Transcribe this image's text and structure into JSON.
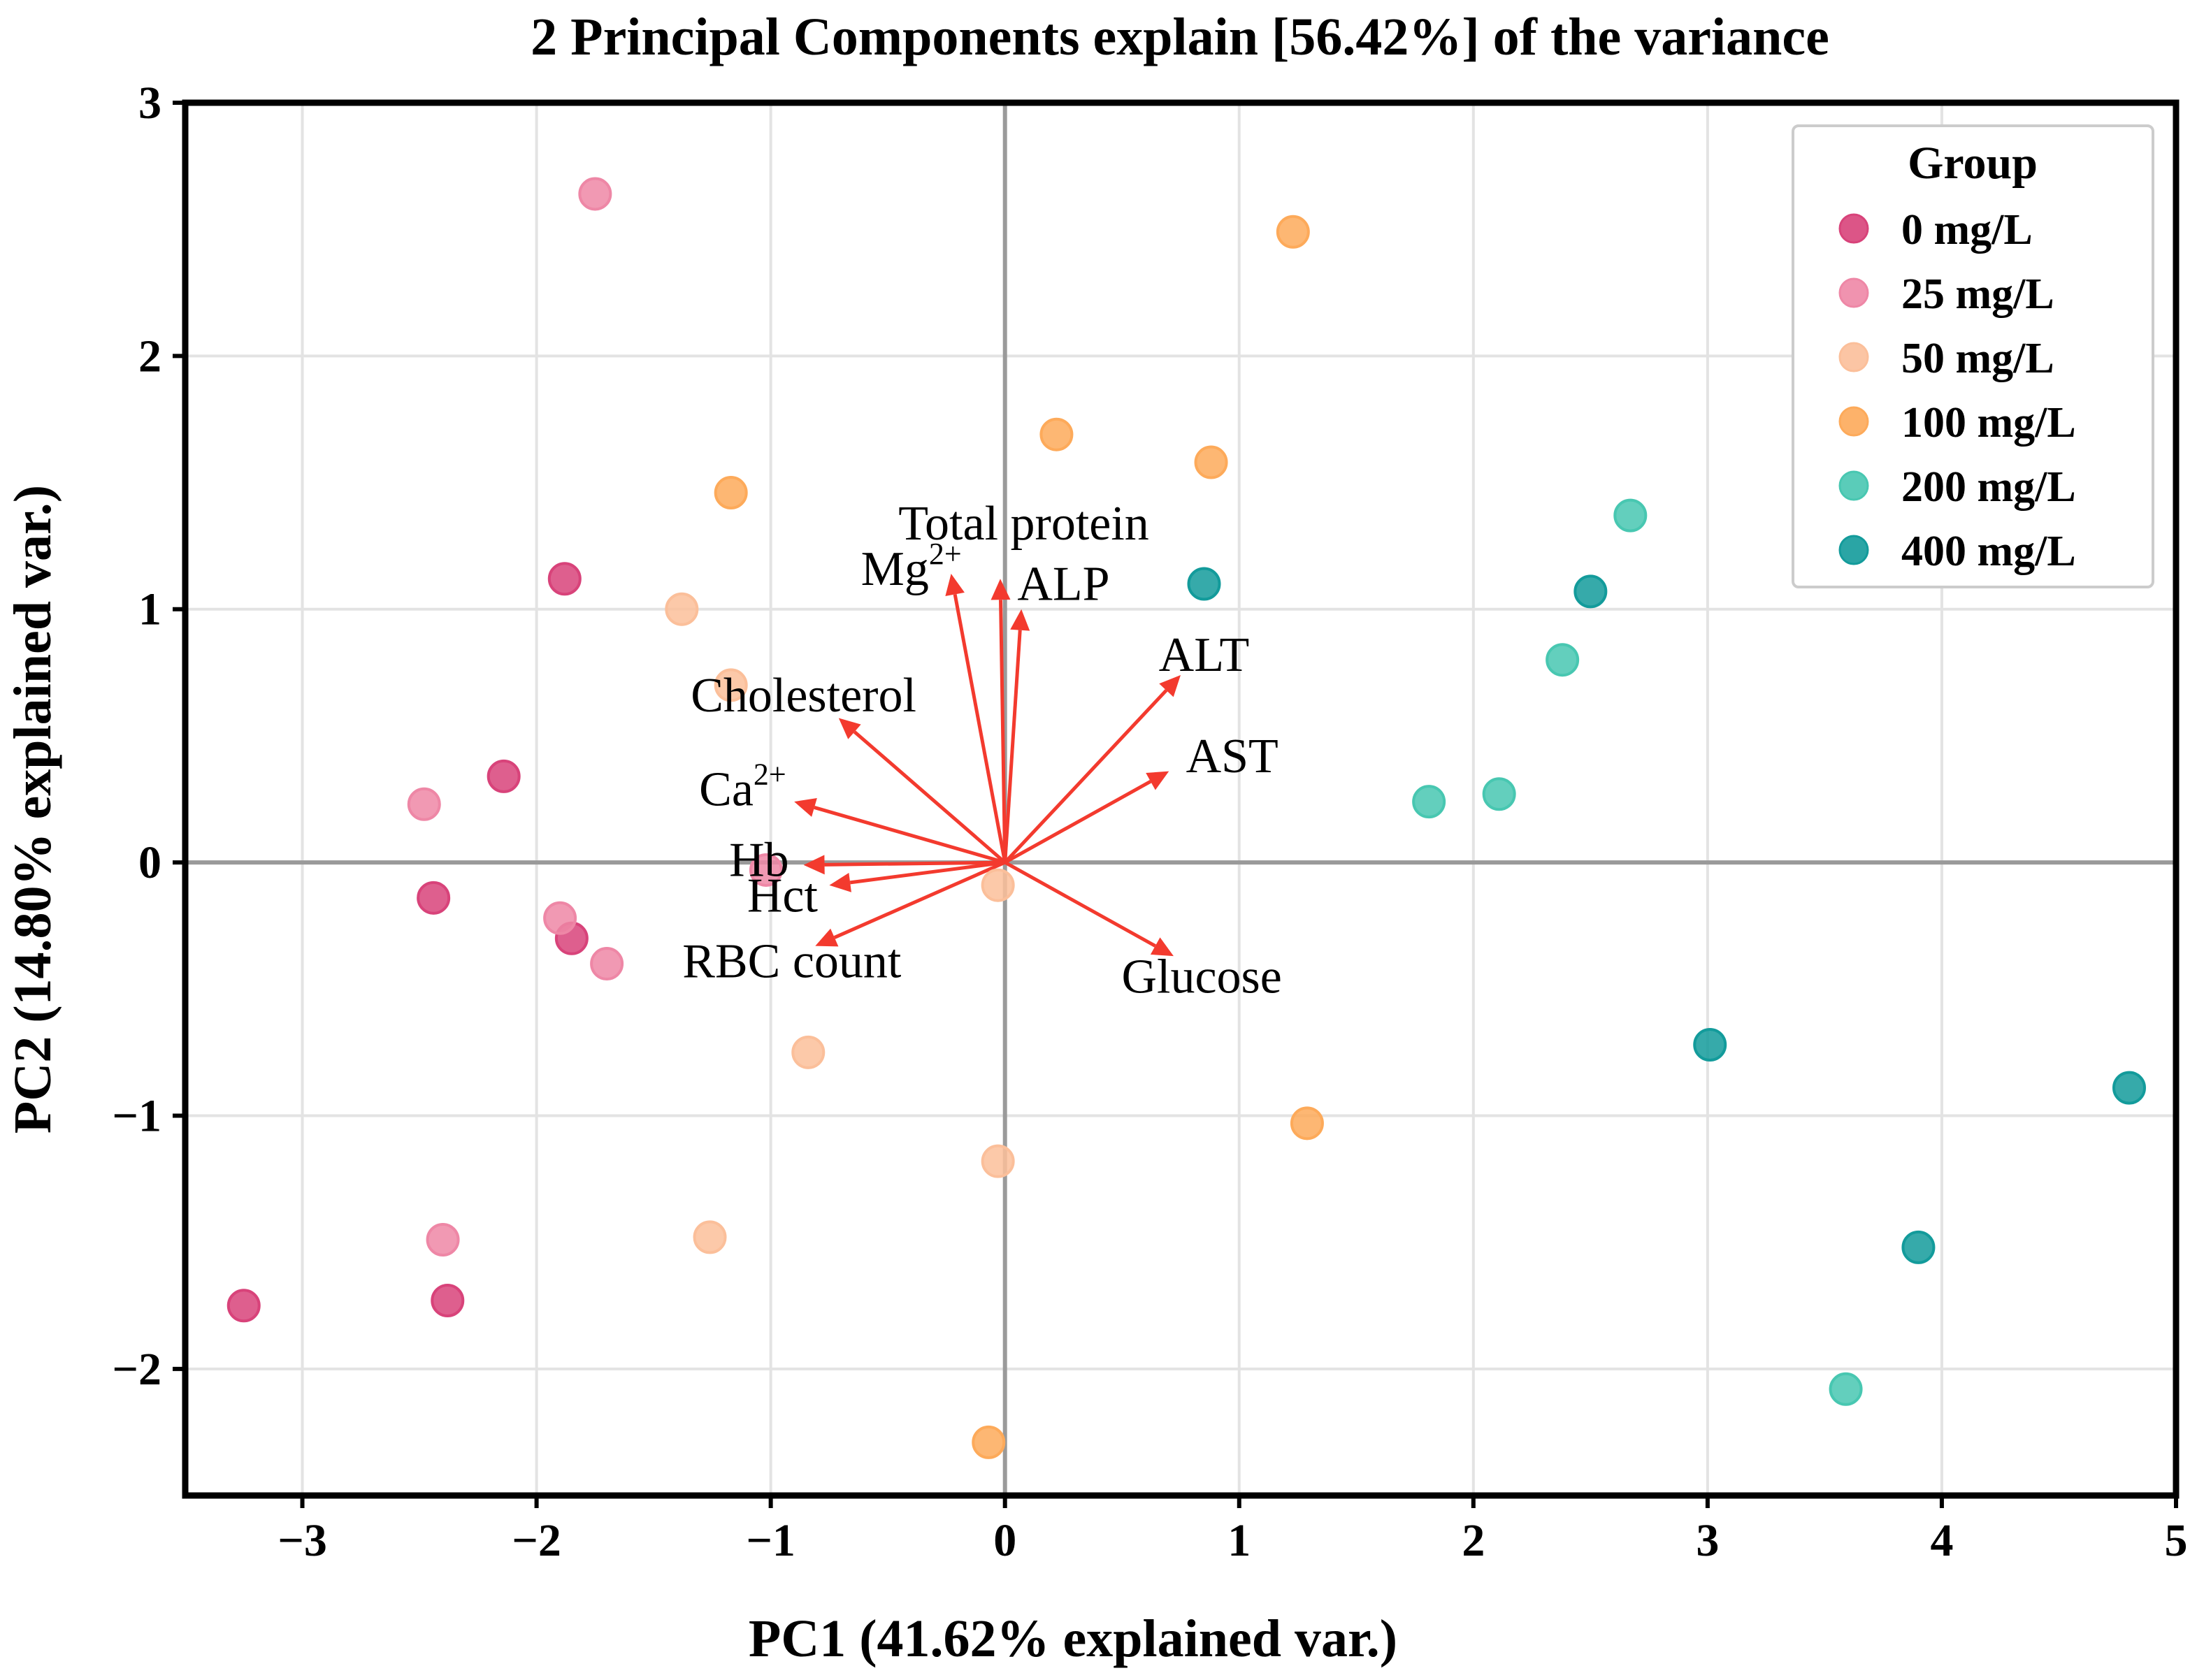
{
  "chart_data": {
    "type": "scatter",
    "subtype": "pca-biplot",
    "title": "2 Principal Components explain [56.42%] of the variance",
    "xlabel": "PC1 (41.62% explained var.)",
    "ylabel": "PC2 (14.80% explained var.)",
    "xlim": [
      -3.5,
      5.0
    ],
    "ylim": [
      -2.5,
      3.0
    ],
    "xticks": [
      -3,
      -2,
      -1,
      0,
      1,
      2,
      3,
      4,
      5
    ],
    "yticks": [
      -2,
      -1,
      0,
      1,
      2,
      3
    ],
    "xtick_labels": [
      "−3",
      "−2",
      "−1",
      "0",
      "1",
      "2",
      "3",
      "4",
      "5"
    ],
    "ytick_labels": [
      "−2",
      "−1",
      "0",
      "1",
      "2",
      "3"
    ],
    "grid": true,
    "legend": {
      "title": "Group",
      "position": "top-right"
    },
    "series": [
      {
        "name": "0 mg/L",
        "color": "#d8437a",
        "points": [
          [
            -1.88,
            1.12
          ],
          [
            -2.14,
            0.34
          ],
          [
            -2.44,
            -0.14
          ],
          [
            -1.85,
            -0.3
          ],
          [
            -2.38,
            -1.73
          ],
          [
            -3.25,
            -1.75
          ]
        ]
      },
      {
        "name": "25 mg/L",
        "color": "#ee87a6",
        "points": [
          [
            -1.75,
            2.64
          ],
          [
            -2.48,
            0.23
          ],
          [
            -1.9,
            -0.22
          ],
          [
            -1.7,
            -0.4
          ],
          [
            -2.4,
            -1.49
          ],
          [
            -1.02,
            -0.03
          ]
        ]
      },
      {
        "name": "50 mg/L",
        "color": "#fbbf9a",
        "points": [
          [
            -1.38,
            1.0
          ],
          [
            -1.17,
            0.7
          ],
          [
            -0.03,
            -0.09
          ],
          [
            -0.84,
            -0.75
          ],
          [
            -0.03,
            -1.18
          ],
          [
            -1.26,
            -1.48
          ]
        ]
      },
      {
        "name": "100 mg/L",
        "color": "#fdaa5a",
        "points": [
          [
            1.23,
            2.49
          ],
          [
            0.22,
            1.69
          ],
          [
            0.88,
            1.58
          ],
          [
            -1.17,
            1.46
          ],
          [
            1.29,
            -1.03
          ],
          [
            -0.07,
            -2.29
          ]
        ]
      },
      {
        "name": "200 mg/L",
        "color": "#48c7b1",
        "points": [
          [
            2.67,
            1.37
          ],
          [
            2.38,
            0.8
          ],
          [
            1.81,
            0.24
          ],
          [
            2.11,
            0.27
          ],
          [
            3.59,
            -2.08
          ]
        ]
      },
      {
        "name": "400 mg/L",
        "color": "#139b9b",
        "points": [
          [
            0.85,
            1.1
          ],
          [
            2.5,
            1.07
          ],
          [
            3.01,
            -0.72
          ],
          [
            4.8,
            -0.89
          ],
          [
            3.9,
            -1.52
          ]
        ]
      }
    ],
    "loadings": {
      "color": "#f33a2e",
      "vectors": [
        {
          "label": "Total protein",
          "label_sup": "",
          "x": -0.02,
          "y": 1.12,
          "label_x": 0.08,
          "label_y": 1.32
        },
        {
          "label": "Mg",
          "label_sup": "2+",
          "x": -0.23,
          "y": 1.14,
          "label_x": -0.4,
          "label_y": 1.14
        },
        {
          "label": "ALP",
          "label_sup": "",
          "x": 0.07,
          "y": 1.0,
          "label_x": 0.25,
          "label_y": 1.08
        },
        {
          "label": "ALT",
          "label_sup": "",
          "x": 0.75,
          "y": 0.74,
          "label_x": 0.85,
          "label_y": 0.8
        },
        {
          "label": "Cholesterol",
          "label_sup": "",
          "x": -0.71,
          "y": 0.57,
          "label_x": -0.86,
          "label_y": 0.64
        },
        {
          "label": "AST",
          "label_sup": "",
          "x": 0.7,
          "y": 0.36,
          "label_x": 0.97,
          "label_y": 0.4
        },
        {
          "label": "Ca",
          "label_sup": "2+",
          "x": -0.9,
          "y": 0.24,
          "label_x": -1.12,
          "label_y": 0.27
        },
        {
          "label": "Hb",
          "label_sup": "",
          "x": -0.86,
          "y": -0.01,
          "label_x": -1.05,
          "label_y": -0.01
        },
        {
          "label": "Hct",
          "label_sup": "",
          "x": -0.75,
          "y": -0.09,
          "label_x": -0.95,
          "label_y": -0.15
        },
        {
          "label": "RBC count",
          "label_sup": "",
          "x": -0.81,
          "y": -0.33,
          "label_x": -0.91,
          "label_y": -0.41
        },
        {
          "label": "Glucose",
          "label_sup": "",
          "x": 0.72,
          "y": -0.37,
          "label_x": 0.84,
          "label_y": -0.47
        }
      ]
    }
  }
}
